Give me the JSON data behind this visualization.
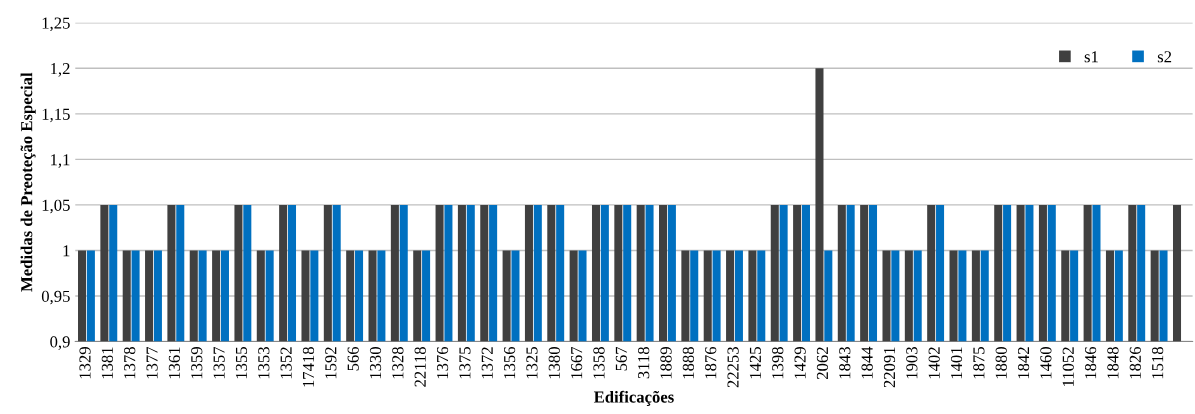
{
  "chart_data": {
    "type": "bar",
    "xlabel": "Edificações",
    "ylabel": "Medidas de Preoteção Especial",
    "categories": [
      "1329",
      "1381",
      "1378",
      "1377",
      "1361",
      "1359",
      "1357",
      "1355",
      "1353",
      "1352",
      "17418",
      "1592",
      "566",
      "1330",
      "1328",
      "22118",
      "1376",
      "1375",
      "1372",
      "1356",
      "1325",
      "1380",
      "1667",
      "1358",
      "567",
      "3118",
      "1889",
      "1888",
      "1876",
      "22253",
      "1425",
      "1398",
      "1429",
      "2062",
      "1843",
      "1844",
      "22091",
      "1903",
      "1402",
      "1401",
      "1875",
      "1880",
      "1842",
      "1460",
      "11052",
      "1846",
      "1848",
      "1826",
      "1518",
      null
    ],
    "series": [
      {
        "name": "s1",
        "color": "#404040",
        "values": [
          1,
          1.05,
          1,
          1,
          1.05,
          1,
          1,
          1.05,
          1,
          1.05,
          1,
          1.05,
          1,
          1,
          1.05,
          1,
          1.05,
          1.05,
          1.05,
          1,
          1.05,
          1.05,
          1,
          1.05,
          1.05,
          1.05,
          1.05,
          1,
          1,
          1,
          1,
          1.05,
          1.05,
          1.2,
          1.05,
          1.05,
          1,
          1,
          1.05,
          1,
          1,
          1.05,
          1.05,
          1.05,
          1,
          1.05,
          1,
          1.05,
          1,
          1.05
        ]
      },
      {
        "name": "s2",
        "color": "#0070c0",
        "values": [
          1,
          1.05,
          1,
          1,
          1.05,
          1,
          1,
          1.05,
          1,
          1.05,
          1,
          1.05,
          1,
          1,
          1.05,
          1,
          1.05,
          1.05,
          1.05,
          1,
          1.05,
          1.05,
          1,
          1.05,
          1.05,
          1.05,
          1.05,
          1,
          1,
          1,
          1,
          1.05,
          1.05,
          1,
          1.05,
          1.05,
          1,
          1,
          1.05,
          1,
          1,
          1.05,
          1.05,
          1.05,
          1,
          1.05,
          1,
          1.05,
          1,
          null
        ]
      }
    ],
    "ylim": [
      0.9,
      1.25
    ],
    "yticks": [
      {
        "value": 0.9,
        "label": "0,9"
      },
      {
        "value": 0.95,
        "label": "0,95"
      },
      {
        "value": 1,
        "label": "1"
      },
      {
        "value": 1.05,
        "label": "1,05"
      },
      {
        "value": 1.1,
        "label": "1,1"
      },
      {
        "value": 1.15,
        "label": "1,15"
      },
      {
        "value": 1.2,
        "label": "1,2"
      },
      {
        "value": 1.25,
        "label": "1,25"
      }
    ],
    "grid": "y",
    "legend": "top right"
  }
}
